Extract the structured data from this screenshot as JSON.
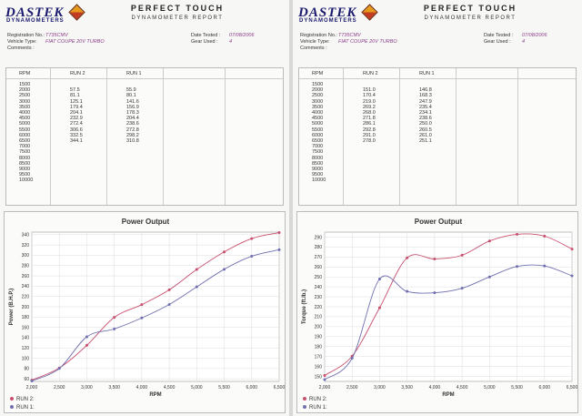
{
  "brand": {
    "name": "DASTEK",
    "sub": "DYNAMOMETERS"
  },
  "report": {
    "title": "PERFECT TOUCH",
    "subtitle": "DYNAMOMETER REPORT"
  },
  "labels": {
    "registration": "Registration No.:",
    "vehicle": "Vehicle Type:",
    "comments": "Comments :",
    "date_tested": "Date Tested :",
    "gear_used": "Gear Used :",
    "rpm": "RPM",
    "run2": "RUN 2",
    "run1": "RUN 1"
  },
  "colors": {
    "run2": "#c8506e",
    "run1": "#7070b0",
    "value_text": "#8a3d8a"
  },
  "sheets": [
    {
      "registration_no": "T735CMV",
      "vehicle_type": "FIAT COUPE 20V TURBO",
      "date_tested": "07/08/2006",
      "gear_used": "4",
      "rpm_values": [
        "1500",
        "2000",
        "2500",
        "3000",
        "3500",
        "4000",
        "4500",
        "5000",
        "5500",
        "6000",
        "6500",
        "7000",
        "7500",
        "8000",
        "8500",
        "9000",
        "9500",
        "10000"
      ],
      "run2_values": [
        "",
        "57.5",
        "81.1",
        "125.1",
        "179.4",
        "204.1",
        "232.9",
        "272.4",
        "306.6",
        "332.5",
        "344.1"
      ],
      "run1_values": [
        "",
        "55.9",
        "80.1",
        "141.6",
        "156.9",
        "178.3",
        "204.4",
        "238.6",
        "272.8",
        "298.2",
        "310.8"
      ],
      "chart_data": {
        "type": "line",
        "title": "Power Output",
        "xlabel": "RPM",
        "ylabel": "Power (B.H.P.)",
        "x": [
          2000,
          2500,
          3000,
          3500,
          4000,
          4500,
          5000,
          5500,
          6000,
          6500
        ],
        "x_tick_labels": [
          "2,000",
          "2,500",
          "3,000",
          "3,500",
          "4,000",
          "4,500",
          "5,000",
          "5,500",
          "6,000",
          "6,500"
        ],
        "xlim": [
          2000,
          6500
        ],
        "ylim": [
          55,
          345
        ],
        "y_ticks": [
          60,
          80,
          100,
          120,
          140,
          160,
          180,
          200,
          220,
          240,
          260,
          280,
          300,
          320,
          340
        ],
        "grid": true,
        "legend": "bottom-left",
        "series": [
          {
            "name": "RUN 2:",
            "values": [
              57.5,
              81.1,
              125.1,
              179.4,
              204.1,
              232.9,
              272.4,
              306.6,
              332.5,
              344.1
            ]
          },
          {
            "name": "RUN 1:",
            "values": [
              55.9,
              80.1,
              141.6,
              156.9,
              178.3,
              204.4,
              238.6,
              272.8,
              298.2,
              310.8
            ]
          }
        ]
      }
    },
    {
      "registration_no": "T735CMV",
      "vehicle_type": "FIAT COUPE 20V TURBO",
      "date_tested": "07/08/2006",
      "gear_used": "4",
      "rpm_values": [
        "1500",
        "2000",
        "2500",
        "3000",
        "3500",
        "4000",
        "4500",
        "5000",
        "5500",
        "6000",
        "6500",
        "7000",
        "7500",
        "8000",
        "8500",
        "9000",
        "9500",
        "10000"
      ],
      "run2_values": [
        "",
        "151.0",
        "170.4",
        "219.0",
        "269.2",
        "268.0",
        "271.8",
        "286.1",
        "292.8",
        "291.0",
        "278.0"
      ],
      "run1_values": [
        "",
        "146.8",
        "168.3",
        "247.9",
        "235.4",
        "234.1",
        "238.6",
        "250.0",
        "260.5",
        "261.0",
        "251.1"
      ],
      "chart_data": {
        "type": "line",
        "title": "Power Output",
        "xlabel": "RPM",
        "ylabel": "Torque (ft.lb.)",
        "x": [
          2000,
          2500,
          3000,
          3500,
          4000,
          4500,
          5000,
          5500,
          6000,
          6500
        ],
        "x_tick_labels": [
          "2,000",
          "2,500",
          "3,000",
          "3,500",
          "4,000",
          "4,500",
          "5,000",
          "5,500",
          "6,000",
          "6,500"
        ],
        "xlim": [
          2000,
          6500
        ],
        "ylim": [
          145,
          295
        ],
        "y_ticks": [
          150,
          160,
          170,
          180,
          190,
          200,
          210,
          220,
          230,
          240,
          250,
          260,
          270,
          280,
          290
        ],
        "grid": true,
        "legend": "bottom-left",
        "series": [
          {
            "name": "RUN 2:",
            "values": [
              151.0,
              170.4,
              219.0,
              269.2,
              268.0,
              271.8,
              286.1,
              292.8,
              291.0,
              278.0
            ]
          },
          {
            "name": "RUN 1:",
            "values": [
              146.8,
              168.3,
              247.9,
              235.4,
              234.1,
              238.6,
              250.0,
              260.5,
              261.0,
              251.1
            ]
          }
        ]
      }
    }
  ]
}
